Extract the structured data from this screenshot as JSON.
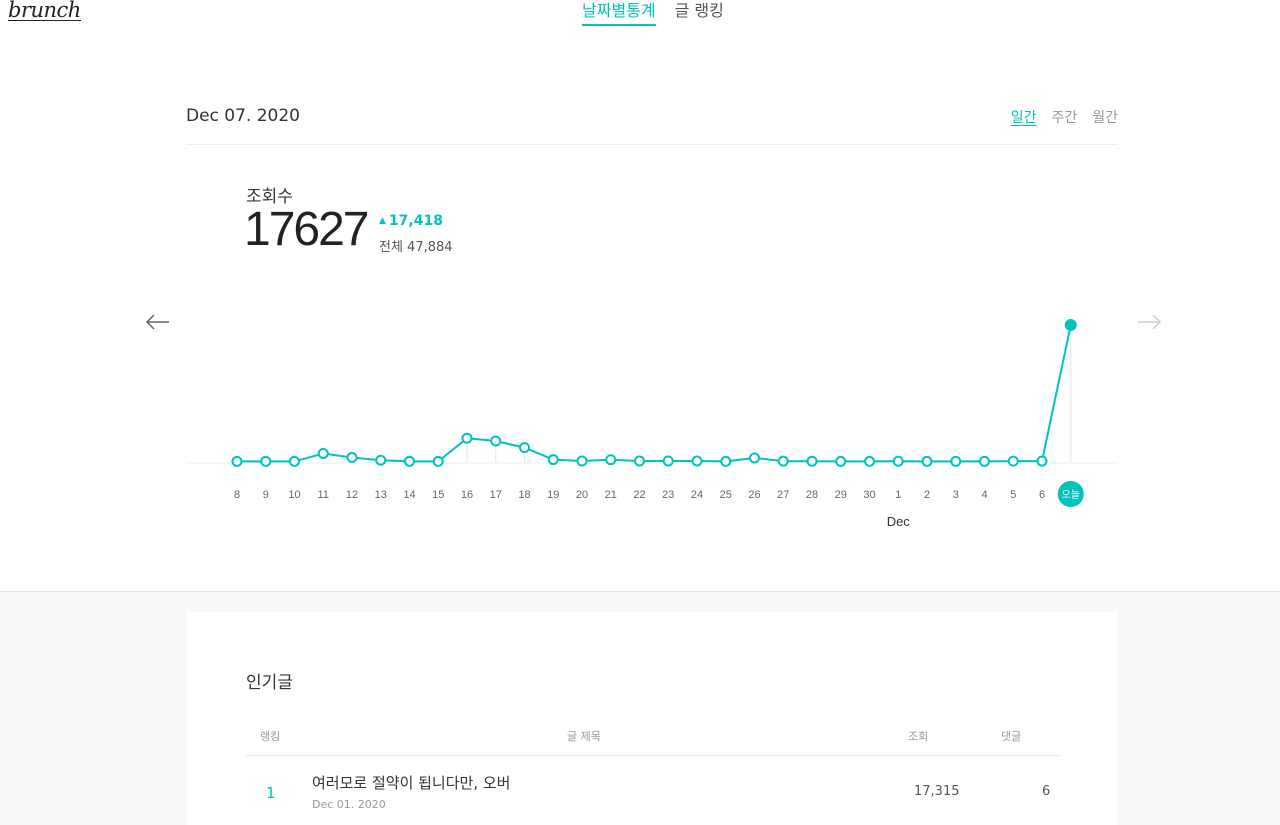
{
  "header": {
    "logo": "brunch",
    "tabs": [
      {
        "label": "날짜별통계",
        "active": true
      },
      {
        "label": "글 랭킹",
        "active": false
      }
    ]
  },
  "stats": {
    "date": "Dec 07. 2020",
    "period_tabs": [
      {
        "label": "일간",
        "active": true
      },
      {
        "label": "주간",
        "active": false
      },
      {
        "label": "월간",
        "active": false
      }
    ],
    "metric_label": "조회수",
    "metric_value": "17627",
    "delta": "17,418",
    "total": "전체 47,884"
  },
  "colors": {
    "accent": "#00c3bd"
  },
  "icons": {
    "prev": "arrow-left-icon",
    "next": "arrow-right-icon"
  },
  "chart_data": {
    "type": "line",
    "categories": [
      "8",
      "9",
      "10",
      "11",
      "12",
      "13",
      "14",
      "15",
      "16",
      "17",
      "18",
      "19",
      "20",
      "21",
      "22",
      "23",
      "24",
      "25",
      "26",
      "27",
      "28",
      "29",
      "30",
      "1",
      "2",
      "3",
      "4",
      "5",
      "6",
      "오늘"
    ],
    "month_label": "Dec",
    "month_label_under": "1",
    "today_label": "오늘",
    "values": [
      75,
      75,
      75,
      1090,
      580,
      230,
      75,
      75,
      3050,
      2700,
      1850,
      300,
      130,
      290,
      130,
      130,
      130,
      75,
      520,
      110,
      100,
      75,
      75,
      100,
      75,
      75,
      75,
      110,
      120,
      17627
    ],
    "ylim": [
      0,
      17627
    ],
    "grid": false
  },
  "popular": {
    "title": "인기글",
    "columns": {
      "rank": "랭킹",
      "title": "글 제목",
      "views": "조회",
      "comments": "댓글"
    },
    "rows": [
      {
        "rank": "1",
        "title": "여러모로 절약이 됩니다만, 오버",
        "date": "Dec 01. 2020",
        "views": "17,315",
        "comments": "6"
      }
    ]
  }
}
